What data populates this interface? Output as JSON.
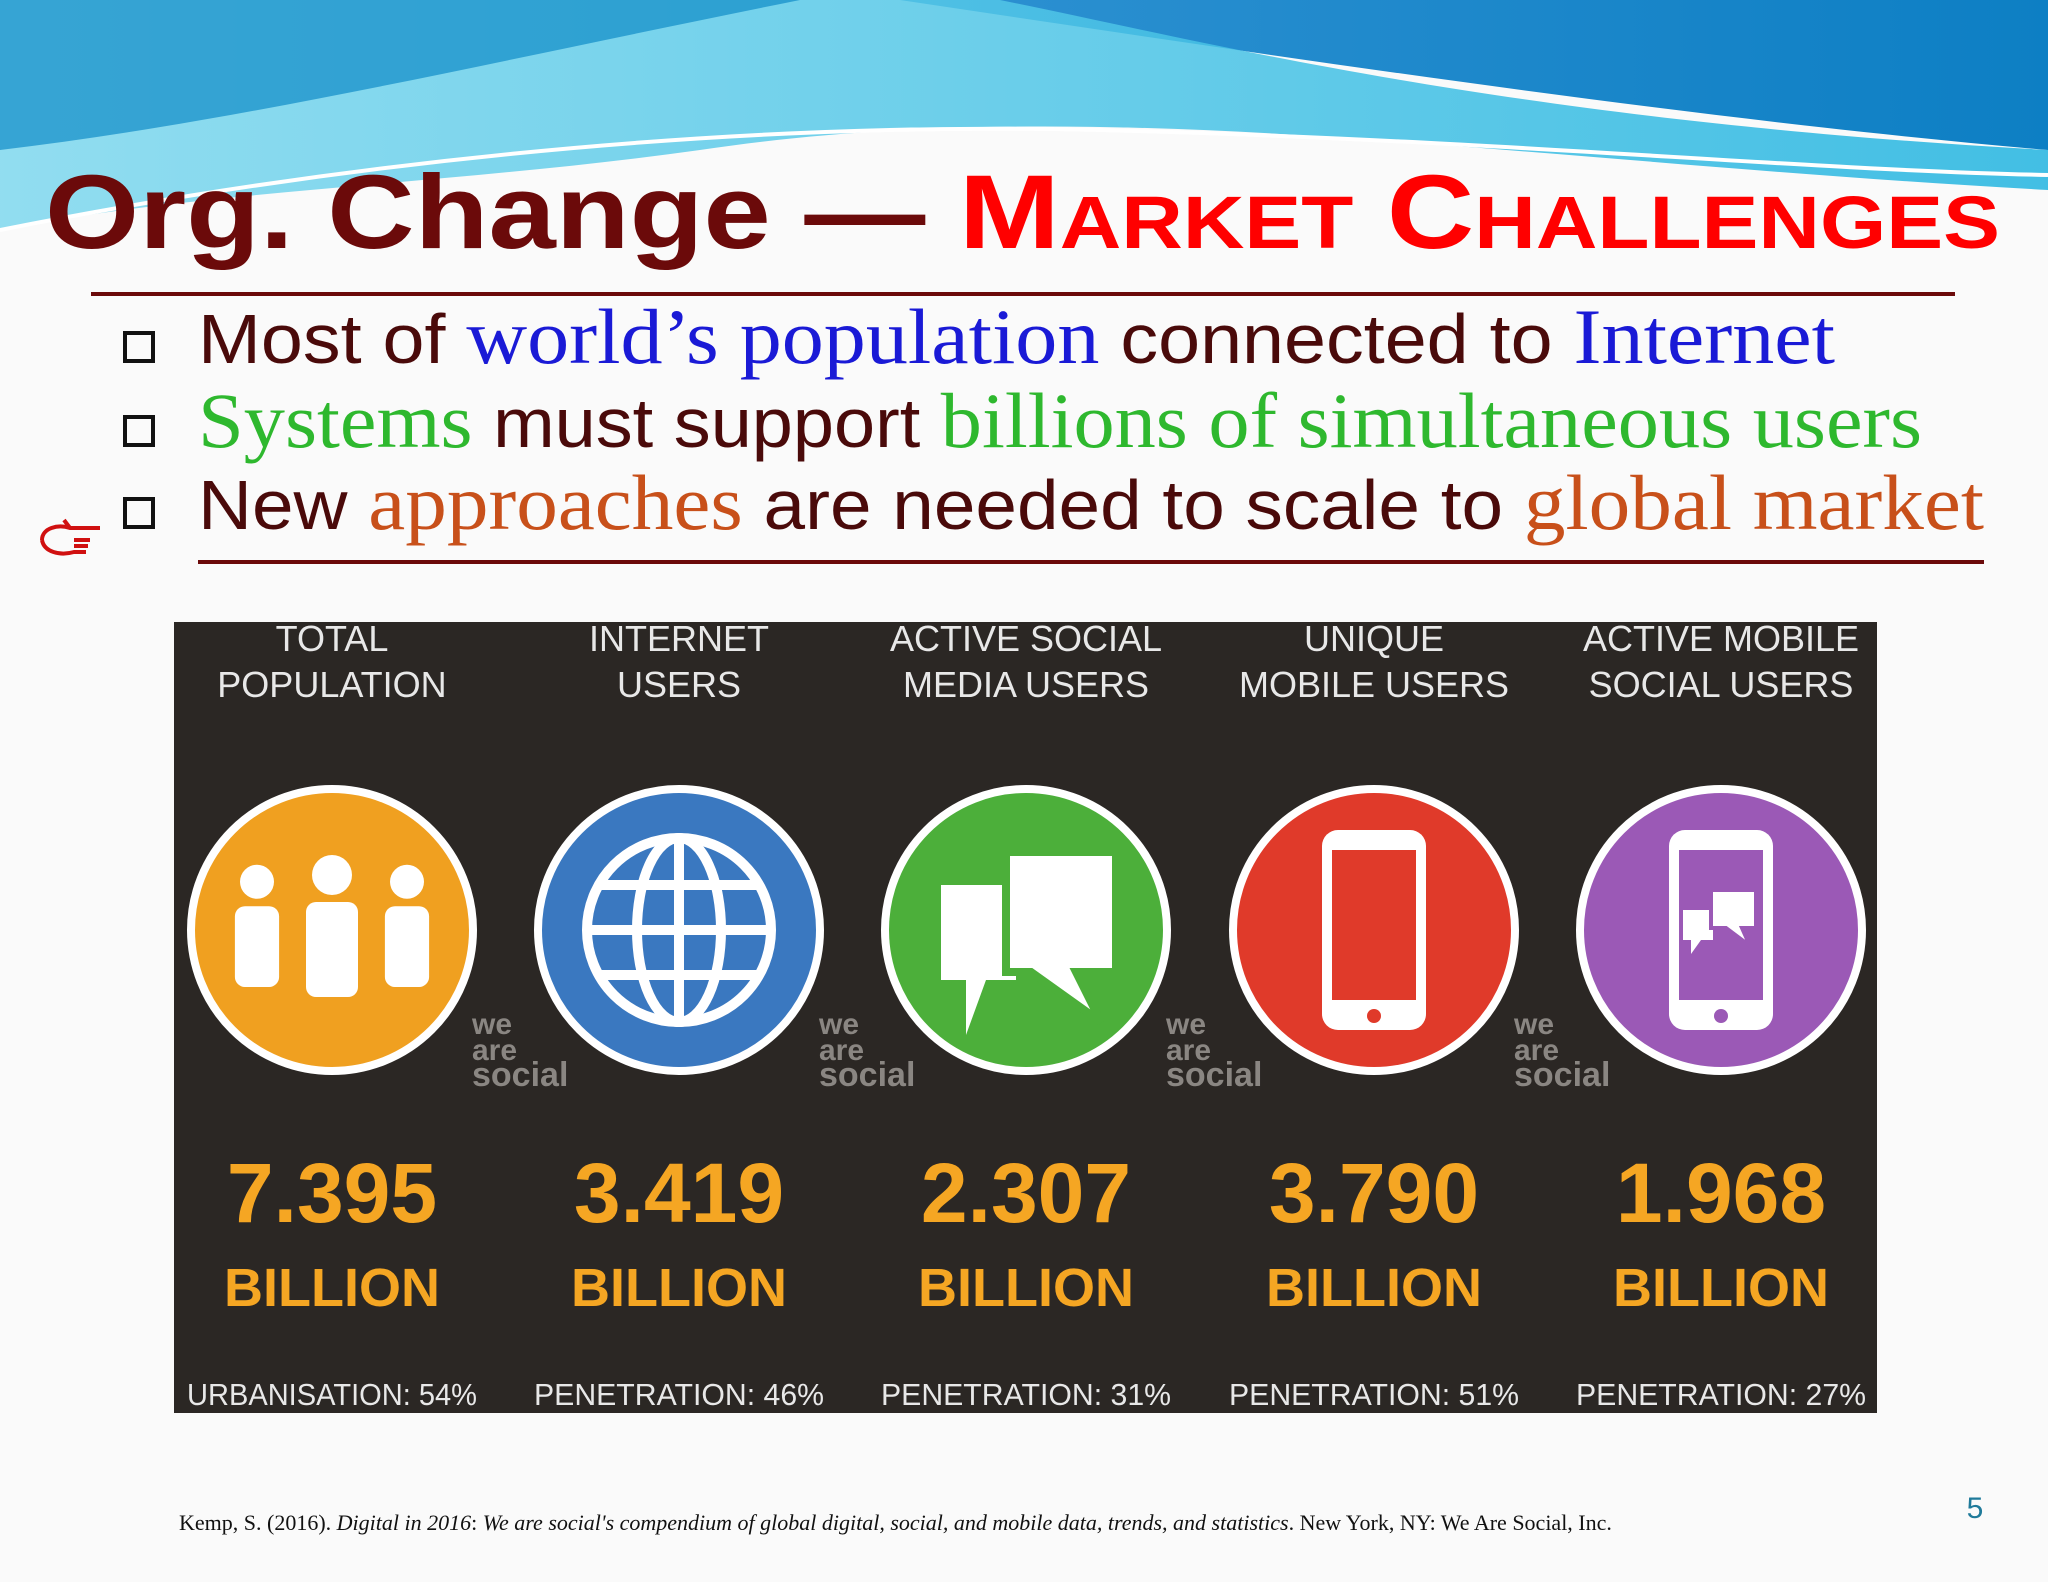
{
  "header": {
    "title": {
      "main": "Org. Change —",
      "accent": "Market Challenges"
    }
  },
  "bullets": [
    [
      {
        "text": "Most of "
      },
      {
        "text": "world’s population"
      },
      {
        "text": " connected to "
      },
      {
        "text": "Internet"
      }
    ],
    [
      {
        "text": "Systems"
      },
      {
        "text": " must support "
      },
      {
        "text": "billions of simultaneous users"
      }
    ],
    [
      {
        "text": "New "
      },
      {
        "text": "approaches"
      },
      {
        "text": " are needed to scale to "
      },
      {
        "text": "global market"
      }
    ]
  ],
  "infographic": {
    "watermark": [
      "we",
      "are",
      "social"
    ],
    "stats": [
      {
        "heading": [
          "TOTAL",
          "POPULATION"
        ],
        "value": "7.395",
        "unit": "BILLION",
        "footer": "URBANISATION: 54%"
      },
      {
        "heading": [
          "INTERNET",
          "USERS"
        ],
        "value": "3.419",
        "unit": "BILLION",
        "footer": "PENETRATION: 46%"
      },
      {
        "heading": [
          "ACTIVE SOCIAL",
          "MEDIA USERS"
        ],
        "value": "2.307",
        "unit": "BILLION",
        "footer": "PENETRATION: 31%"
      },
      {
        "heading": [
          "UNIQUE",
          "MOBILE USERS"
        ],
        "value": "3.790",
        "unit": "BILLION",
        "footer": "PENETRATION: 51%"
      },
      {
        "heading": [
          "ACTIVE MOBILE",
          "SOCIAL USERS"
        ],
        "value": "1.968",
        "unit": "BILLION",
        "footer": "PENETRATION: 27%"
      }
    ]
  },
  "citation": [
    {
      "text": "Kemp, S. (2016). "
    },
    {
      "text": "Digital in 2016"
    },
    {
      "text": ": "
    },
    {
      "text": "We are social's compendium of global digital, social, and mobile data, trends, and statistics"
    },
    {
      "text": ". New York, NY: We Are Social, Inc."
    }
  ],
  "page_number": "5"
}
